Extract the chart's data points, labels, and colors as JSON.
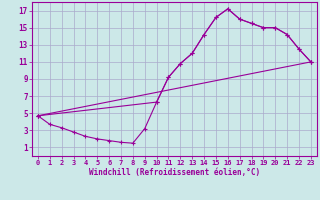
{
  "xlabel": "Windchill (Refroidissement éolien,°C)",
  "bg_color": "#cce8e8",
  "grid_color": "#aaaacc",
  "line_color": "#990099",
  "xlim": [
    -0.5,
    23.5
  ],
  "ylim": [
    0,
    18
  ],
  "xticks": [
    0,
    1,
    2,
    3,
    4,
    5,
    6,
    7,
    8,
    9,
    10,
    11,
    12,
    13,
    14,
    15,
    16,
    17,
    18,
    19,
    20,
    21,
    22,
    23
  ],
  "yticks": [
    1,
    3,
    5,
    7,
    9,
    11,
    13,
    15,
    17
  ],
  "line1_x": [
    0,
    1,
    2,
    3,
    4,
    5,
    6,
    7,
    8,
    9,
    10,
    11,
    12,
    13,
    14,
    15,
    16,
    17,
    18,
    19,
    20,
    21,
    22,
    23
  ],
  "line1_y": [
    4.7,
    3.7,
    3.3,
    2.8,
    2.3,
    2.0,
    1.8,
    1.6,
    1.5,
    3.2,
    6.3,
    9.2,
    10.8,
    12.0,
    14.2,
    16.2,
    17.2,
    16.0,
    15.5,
    15.0,
    15.0,
    14.2,
    12.5,
    11.0
  ],
  "line2_x": [
    0,
    10,
    11,
    12,
    13,
    14,
    15,
    16,
    17,
    18,
    19,
    20,
    21,
    22,
    23
  ],
  "line2_y": [
    4.7,
    6.3,
    9.2,
    10.8,
    12.0,
    14.2,
    16.2,
    17.2,
    16.0,
    15.5,
    15.0,
    15.0,
    14.2,
    12.5,
    11.0
  ],
  "line3_x": [
    0,
    23
  ],
  "line3_y": [
    4.7,
    11.0
  ]
}
